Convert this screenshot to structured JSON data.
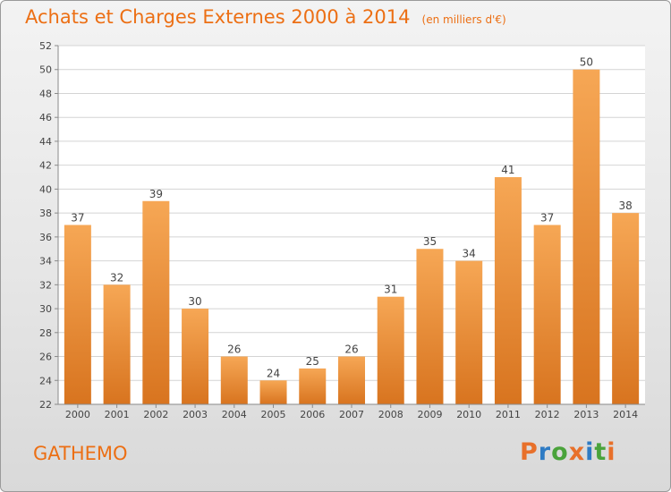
{
  "header": {
    "title": "Achats et Charges Externes 2000 à 2014",
    "subtitle": "(en milliers d'€)"
  },
  "footer": {
    "commune": "GATHEMO",
    "logo_text": "Proxiti",
    "logo_colors": [
      "#e8702a",
      "#2e7bc4",
      "#4aa33b",
      "#e8702a",
      "#2e7bc4",
      "#4aa33b",
      "#e8702a"
    ]
  },
  "chart_data": {
    "type": "bar",
    "title": "Achats et Charges Externes 2000 à 2014",
    "subtitle": "(en milliers d'€)",
    "categories": [
      "2000",
      "2001",
      "2002",
      "2003",
      "2004",
      "2005",
      "2006",
      "2007",
      "2008",
      "2009",
      "2010",
      "2011",
      "2012",
      "2013",
      "2014"
    ],
    "values": [
      37,
      32,
      39,
      30,
      26,
      24,
      25,
      26,
      31,
      35,
      34,
      41,
      37,
      50,
      38
    ],
    "xlabel": "",
    "ylabel": "",
    "ylim": [
      22,
      52
    ],
    "yticks": [
      22,
      24,
      26,
      28,
      30,
      32,
      34,
      36,
      38,
      40,
      42,
      44,
      46,
      48,
      50,
      52
    ],
    "grid": true,
    "bar_color_top": "#f6a755",
    "bar_color_bottom": "#d8741f"
  }
}
